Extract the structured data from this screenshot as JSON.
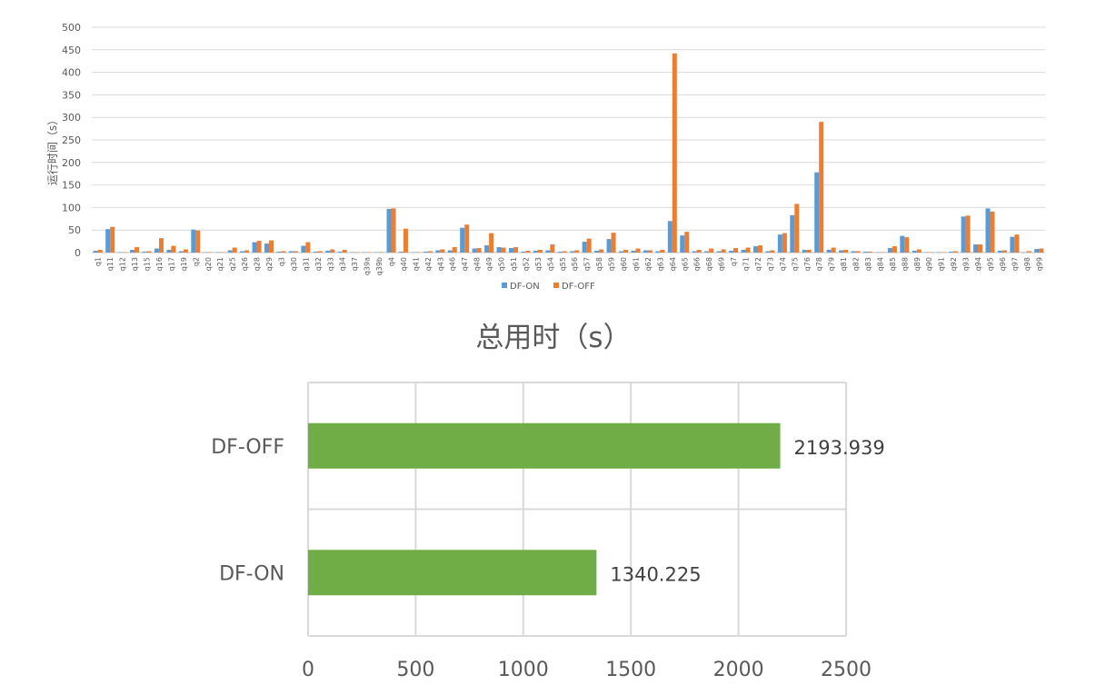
{
  "chart_data": [
    {
      "type": "bar",
      "orientation": "vertical",
      "ylabel": "运行时间（s）",
      "ylim": [
        0,
        500
      ],
      "yticks": [
        0,
        50,
        100,
        150,
        200,
        250,
        300,
        350,
        400,
        450,
        500
      ],
      "grid": true,
      "legend_position": "bottom",
      "categories": [
        "q1",
        "q11",
        "q12",
        "q13",
        "q15",
        "q16",
        "q17",
        "q19",
        "q2",
        "q20",
        "q21",
        "q25",
        "q26",
        "q28",
        "q29",
        "q3",
        "q30",
        "q31",
        "q32",
        "q33",
        "q34",
        "q37",
        "q39a",
        "q39b",
        "q4",
        "q40",
        "q41",
        "q42",
        "q43",
        "q46",
        "q47",
        "q48",
        "q49",
        "q50",
        "q51",
        "q52",
        "q53",
        "q54",
        "q55",
        "q56",
        "q57",
        "q58",
        "q59",
        "q60",
        "q61",
        "q62",
        "q63",
        "q64",
        "q65",
        "q66",
        "q68",
        "q69",
        "q7",
        "q71",
        "q72",
        "q73",
        "q74",
        "q75",
        "q76",
        "q78",
        "q79",
        "q81",
        "q82",
        "q83",
        "q84",
        "q85",
        "q88",
        "q89",
        "q90",
        "q91",
        "q92",
        "q93",
        "q94",
        "q95",
        "q96",
        "q97",
        "q98",
        "q99"
      ],
      "series": [
        {
          "name": "DF-ON",
          "color": "#5B9BD5",
          "values": [
            4,
            52,
            1,
            6,
            2,
            9,
            6,
            3,
            51,
            1,
            1,
            5,
            3,
            23,
            20,
            2,
            3,
            15,
            2,
            4,
            2,
            1,
            1,
            1,
            97,
            2,
            1,
            2,
            5,
            5,
            55,
            9,
            16,
            12,
            10,
            2,
            4,
            5,
            2,
            3,
            24,
            4,
            30,
            3,
            4,
            5,
            3,
            70,
            38,
            3,
            3,
            3,
            4,
            6,
            14,
            3,
            40,
            83,
            6,
            178,
            6,
            5,
            3,
            2,
            1,
            10,
            37,
            4,
            1,
            1,
            2,
            80,
            18,
            98,
            4,
            35,
            1,
            8
          ]
        },
        {
          "name": "DF-OFF",
          "color": "#ED7D31",
          "values": [
            6,
            57,
            1,
            12,
            3,
            32,
            15,
            7,
            49,
            1,
            1,
            11,
            5,
            26,
            27,
            3,
            3,
            23,
            3,
            7,
            6,
            1,
            1,
            1,
            98,
            53,
            1,
            3,
            7,
            12,
            62,
            10,
            43,
            11,
            12,
            4,
            6,
            18,
            3,
            5,
            31,
            7,
            44,
            6,
            9,
            5,
            6,
            442,
            46,
            6,
            9,
            7,
            10,
            11,
            16,
            5,
            43,
            108,
            6,
            290,
            11,
            6,
            3,
            2,
            1,
            14,
            34,
            7,
            1,
            1,
            3,
            82,
            18,
            91,
            5,
            40,
            3,
            9
          ]
        }
      ]
    },
    {
      "type": "bar",
      "orientation": "horizontal",
      "title": "总用时（s）",
      "categories": [
        "DF-OFF",
        "DF-ON"
      ],
      "values": [
        2193.939,
        1340.225
      ],
      "data_labels": [
        "2193.939",
        "1340.225"
      ],
      "xlim": [
        0,
        2500
      ],
      "xticks": [
        0,
        500,
        1000,
        1500,
        2000,
        2500
      ],
      "grid": true,
      "bar_color": "#70AD47"
    }
  ]
}
